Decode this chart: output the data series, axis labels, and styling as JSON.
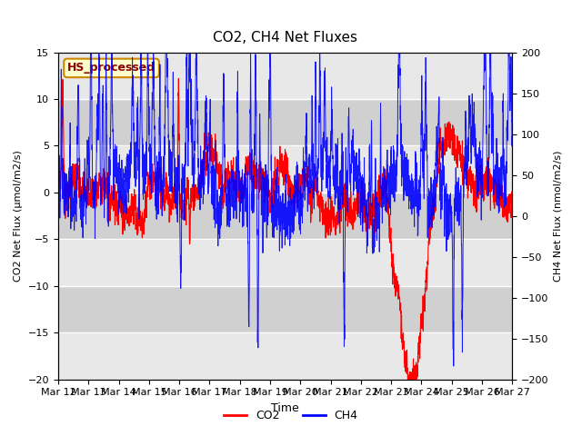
{
  "title": "CO2, CH4 Net Fluxes",
  "xlabel": "Time",
  "ylabel_left": "CO2 Net Flux (μmol/m2/s)",
  "ylabel_right": "CH4 Net Flux (nmol/m2/s)",
  "ylim_left": [
    -20,
    15
  ],
  "ylim_right": [
    -200,
    200
  ],
  "co2_color": "#FF0000",
  "ch4_color": "#0000FF",
  "legend_label_co2": "CO2",
  "legend_label_ch4": "CH4",
  "text_box_label": "HS_processed",
  "text_box_facecolor": "#FFFFCC",
  "text_box_edgecolor": "#CC8800",
  "background_color": "#FFFFFF",
  "plot_bg_color": "#E0E0E0",
  "band_light": "#E8E8E8",
  "band_dark": "#D0D0D0",
  "grid_color": "#FFFFFF",
  "x_start_day": 12,
  "x_end_day": 27,
  "num_points": 3000,
  "seed": 7,
  "x_ticks": [
    12,
    13,
    14,
    15,
    16,
    17,
    18,
    19,
    20,
    21,
    22,
    23,
    24,
    25,
    26,
    27
  ],
  "x_tick_labels": [
    "Mar 12",
    "Mar 13",
    "Mar 14",
    "Mar 15",
    "Mar 16",
    "Mar 17",
    "Mar 18",
    "Mar 19",
    "Mar 20",
    "Mar 21",
    "Mar 22",
    "Mar 23",
    "Mar 24",
    "Mar 25",
    "Mar 26",
    "Mar 27"
  ],
  "yticks_left": [
    -20,
    -15,
    -10,
    -5,
    0,
    5,
    10,
    15
  ],
  "yticks_right": [
    -200,
    -150,
    -100,
    -50,
    0,
    50,
    100,
    150,
    200
  ]
}
